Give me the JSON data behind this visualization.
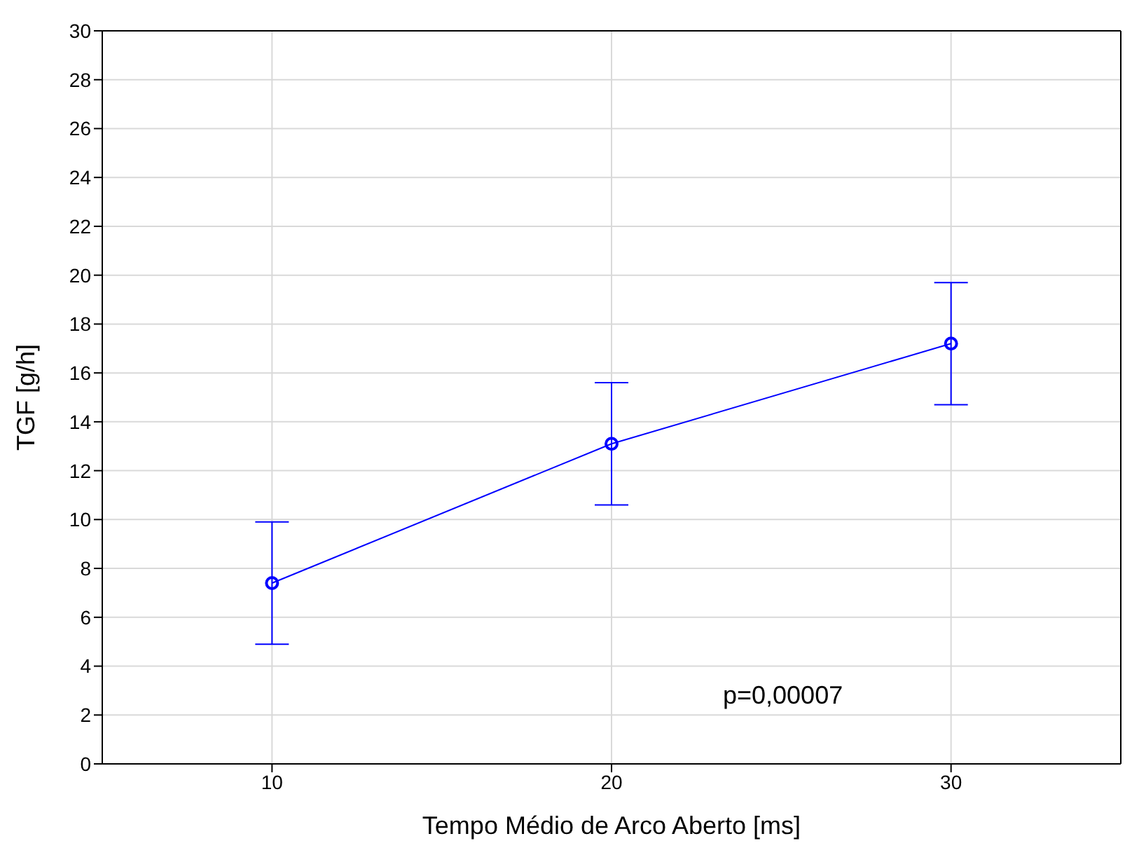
{
  "chart_data": {
    "type": "line",
    "xlabel": "Tempo Médio de Arco Aberto [ms]",
    "ylabel": "TGF [g/h]",
    "x": [
      10,
      20,
      30
    ],
    "values": [
      7.4,
      13.1,
      17.2
    ],
    "errors": [
      2.5,
      2.5,
      2.5
    ],
    "color": "#0000ff",
    "xlim": [
      5,
      35
    ],
    "xticks": [
      10,
      20,
      30
    ],
    "ylim": [
      0,
      30
    ],
    "yticks": [
      0,
      2,
      4,
      6,
      8,
      10,
      12,
      14,
      16,
      18,
      20,
      22,
      24,
      26,
      28,
      30
    ],
    "grid": true,
    "marker": "circle",
    "line_style": "solid",
    "annotations": [
      "p=0,00007"
    ]
  }
}
